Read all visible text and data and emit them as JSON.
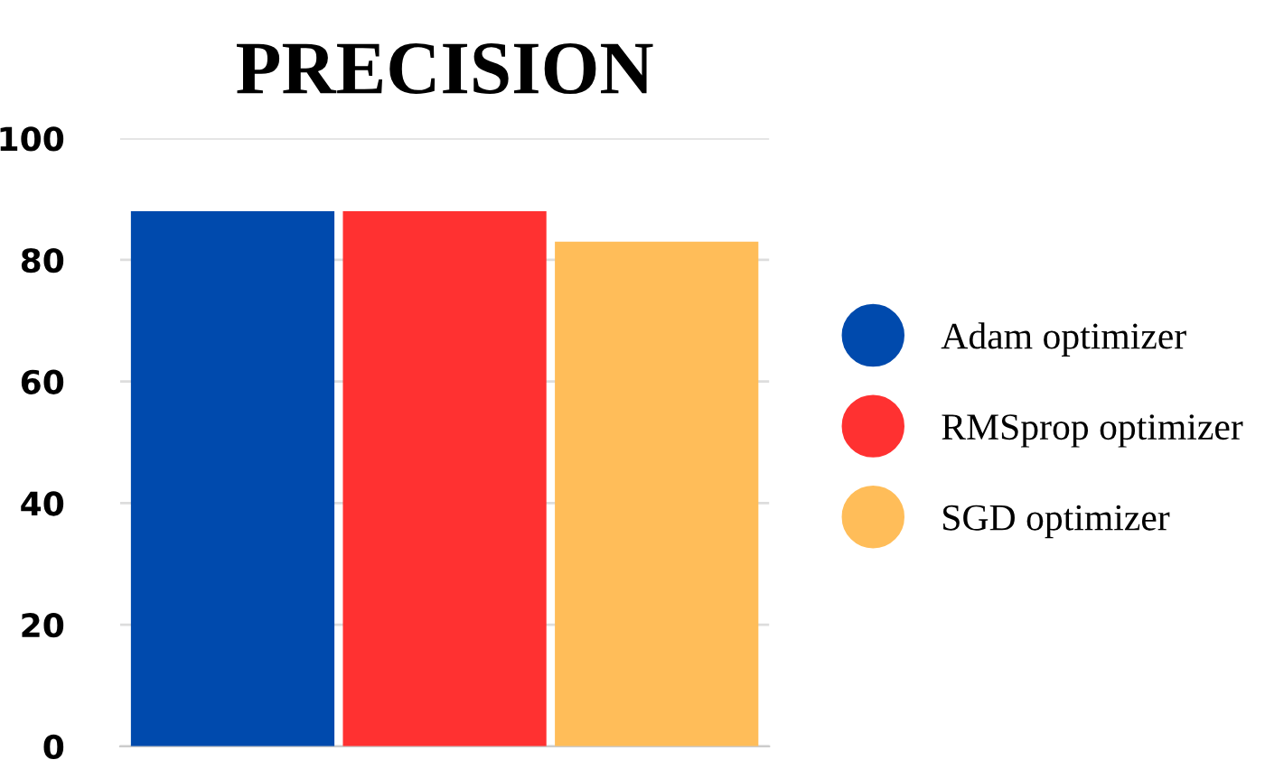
{
  "chart_data": {
    "type": "bar",
    "title": "PRECISION",
    "categories": [
      null
    ],
    "series": [
      {
        "name": "Adam optimizer",
        "color": "#004aad",
        "values": [
          88
        ]
      },
      {
        "name": "RMSprop optimizer",
        "color": "#ff3131",
        "values": [
          88
        ]
      },
      {
        "name": "SGD optimizer",
        "color": "#ffbd59",
        "values": [
          83
        ]
      }
    ],
    "ylim": [
      0,
      100
    ],
    "yticks": [
      0,
      20,
      40,
      60,
      80,
      100
    ],
    "grid": "y",
    "legend": "right"
  }
}
